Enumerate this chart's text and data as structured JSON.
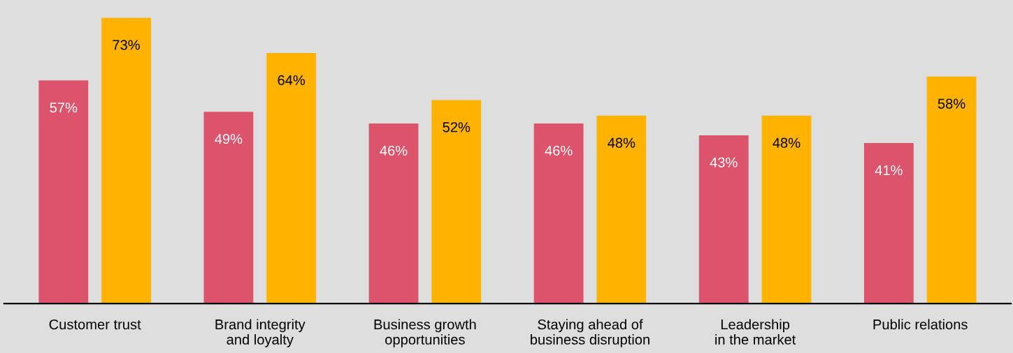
{
  "chart_data": {
    "type": "bar",
    "categories": [
      "Customer trust",
      "Brand integrity\nand loyalty",
      "Business growth\nopportunities",
      "Staying ahead of\nbusiness disruption",
      "Leadership\nin the market",
      "Public relations"
    ],
    "series": [
      {
        "color": "#dc546b",
        "values": [
          57,
          49,
          46,
          46,
          43,
          41
        ],
        "value_labels": [
          "57%",
          "49%",
          "46%",
          "46%",
          "43%",
          "41%"
        ]
      },
      {
        "color": "#ffb300",
        "values": [
          73,
          64,
          52,
          48,
          48,
          58
        ],
        "value_labels": [
          "73%",
          "64%",
          "52%",
          "48%",
          "48%",
          "58%"
        ]
      }
    ],
    "grid": false,
    "legend": false
  }
}
